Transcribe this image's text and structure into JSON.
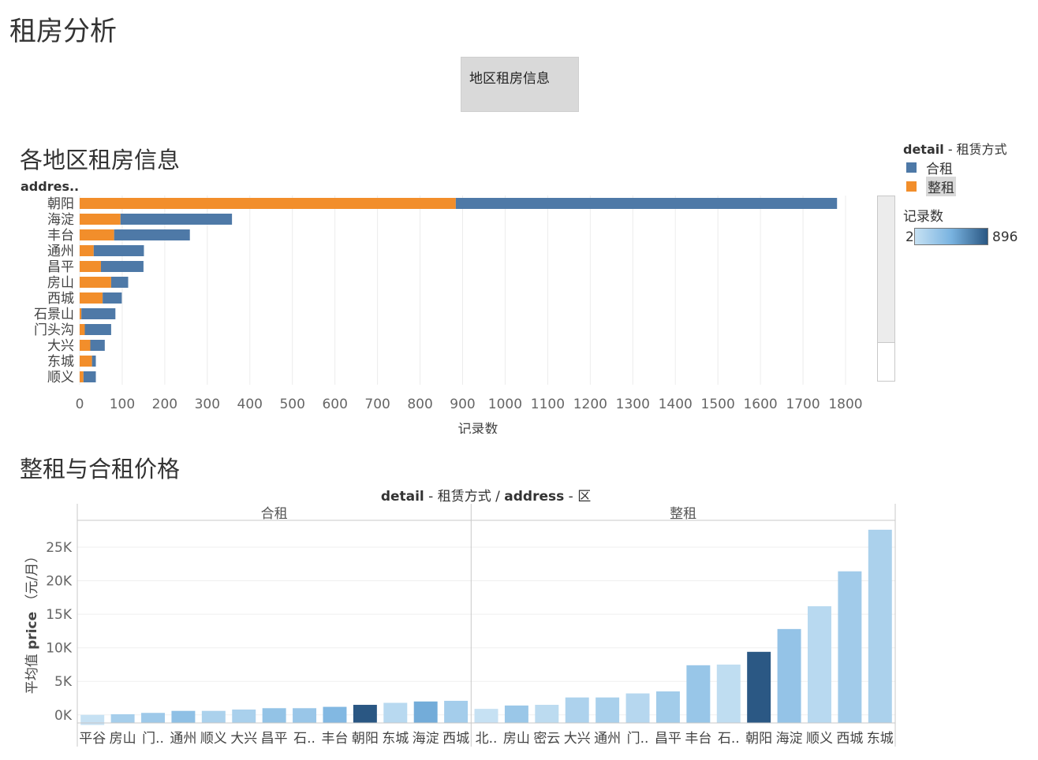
{
  "page": {
    "title": "租房分析"
  },
  "filter": {
    "label": "地区租房信息"
  },
  "sections": {
    "bar_title": "各地区租房信息",
    "price_title": "整租与合租价格"
  },
  "bar_header": "addres..",
  "legend": {
    "color_field": "detail",
    "color_field_alias": "租赁方式",
    "items": [
      {
        "label": "合租",
        "color": "#4e79a7",
        "selected": false
      },
      {
        "label": "整租",
        "color": "#f28e2b",
        "selected": true
      }
    ],
    "measure_title": "记录数",
    "measure_min": "2",
    "measure_max": "896",
    "gradient": [
      "#c6e1f3",
      "#2a5783"
    ]
  },
  "chart_data": [
    {
      "type": "bar",
      "orientation": "horizontal",
      "stacked": true,
      "title": "各地区租房信息",
      "row_header": "addres..",
      "categories": [
        "朝阳",
        "海淀",
        "丰台",
        "通州",
        "昌平",
        "房山",
        "西城",
        "石景山",
        "门头沟",
        "大兴",
        "东城",
        "顺义"
      ],
      "series": [
        {
          "name": "整租",
          "color": "#f28e2b",
          "values": [
            884,
            96,
            81,
            33,
            50,
            74,
            54,
            4,
            12,
            25,
            29,
            9
          ]
        },
        {
          "name": "合租",
          "color": "#4e79a7",
          "values": [
            896,
            262,
            178,
            118,
            100,
            40,
            45,
            80,
            62,
            34,
            9,
            29
          ]
        }
      ],
      "xlabel": "记录数",
      "xlim": [
        0,
        1800
      ],
      "xticks": [
        0,
        100,
        200,
        300,
        400,
        500,
        600,
        700,
        800,
        900,
        1000,
        1100,
        1200,
        1300,
        1400,
        1500,
        1600,
        1700,
        1800
      ],
      "grid": true
    },
    {
      "type": "bar",
      "title": "整租与合租价格",
      "header": {
        "field1": "detail",
        "alias1": "租赁方式",
        "sep": "/",
        "field2": "address",
        "alias2": "区"
      },
      "ylabel_prefix": "平均值",
      "ylabel_field": "price",
      "ylabel_suffix": "（元/月）",
      "ylim": [
        -1200,
        29000
      ],
      "yticks": [
        {
          "label": "0K",
          "value": 0
        },
        {
          "label": "5K",
          "value": 5000
        },
        {
          "label": "10K",
          "value": 10000
        },
        {
          "label": "15K",
          "value": 15000
        },
        {
          "label": "20K",
          "value": 20000
        },
        {
          "label": "25K",
          "value": 25000
        }
      ],
      "grid": true,
      "panels": [
        {
          "name": "合租",
          "categories": [
            "平谷",
            "房山",
            "门..",
            "通州",
            "顺义",
            "大兴",
            "昌平",
            "石..",
            "丰台",
            "朝阳",
            "东城",
            "海淀",
            "西城"
          ],
          "values": [
            -300,
            100,
            300,
            600,
            600,
            800,
            1000,
            1000,
            1200,
            1500,
            1800,
            2000,
            2100
          ],
          "counts": [
            2,
            40,
            62,
            118,
            29,
            34,
            100,
            80,
            178,
            896,
            9,
            262,
            45
          ]
        },
        {
          "name": "整租",
          "categories": [
            "北..",
            "房山",
            "密云",
            "大兴",
            "通州",
            "门..",
            "昌平",
            "丰台",
            "石..",
            "朝阳",
            "海淀",
            "顺义",
            "西城",
            "东城"
          ],
          "values": [
            900,
            1400,
            1500,
            2600,
            2600,
            3200,
            3500,
            7400,
            7500,
            9400,
            12800,
            16200,
            21400,
            27600
          ],
          "counts": [
            2,
            74,
            6,
            25,
            33,
            12,
            50,
            81,
            4,
            884,
            96,
            9,
            54,
            29
          ]
        }
      ]
    }
  ]
}
